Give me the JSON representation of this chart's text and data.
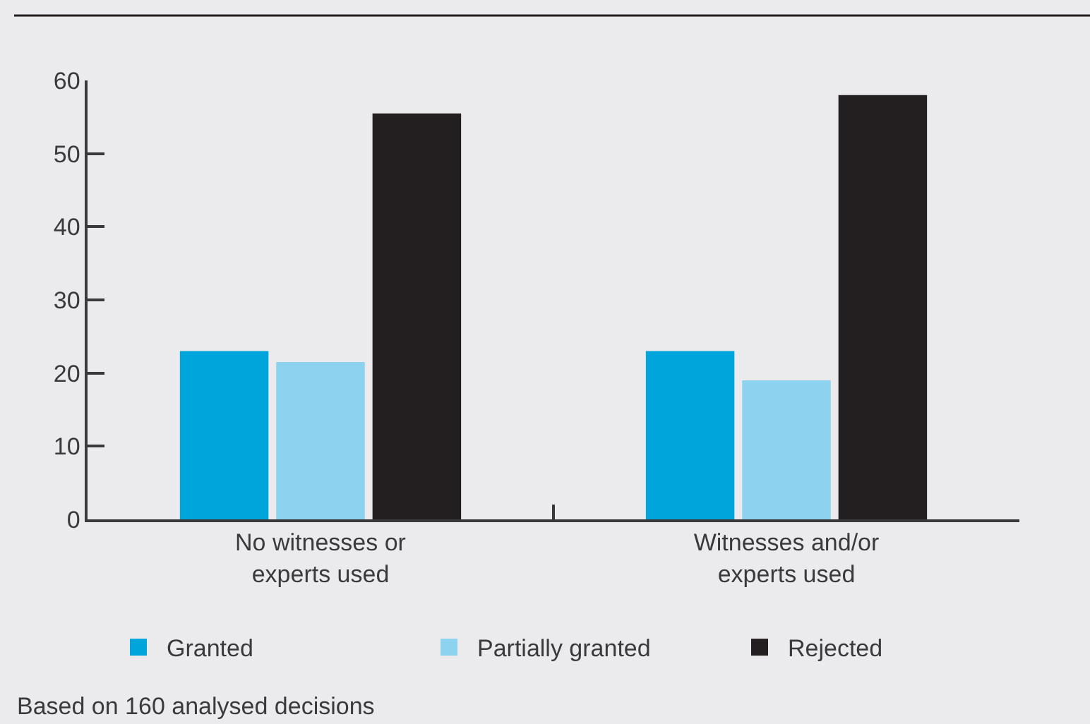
{
  "chart_data": {
    "type": "bar",
    "categories": [
      "No witnesses or experts used",
      "Witnesses and/or experts used"
    ],
    "series": [
      {
        "name": "Granted",
        "color": "#00a5db",
        "values": [
          23,
          23
        ]
      },
      {
        "name": "Partially granted",
        "color": "#8dd3f0",
        "values": [
          21.5,
          19
        ]
      },
      {
        "name": "Rejected",
        "color": "#231f20",
        "values": [
          55.5,
          58
        ]
      }
    ],
    "ylim": [
      0,
      60
    ],
    "yticks": [
      0,
      10,
      20,
      30,
      40,
      50,
      60
    ],
    "grid": false,
    "legend": "bottom",
    "annotations": [
      "Based on 160 analysed decisions"
    ]
  }
}
